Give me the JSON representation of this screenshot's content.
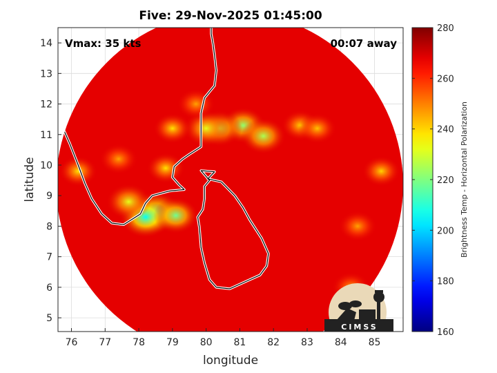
{
  "chart_data": {
    "type": "heatmap",
    "title": "Five: 29-Nov-2025 01:45:00",
    "xlabel": "longitude",
    "ylabel": "latitude",
    "xlim": [
      75.6,
      85.85
    ],
    "ylim": [
      4.55,
      14.5
    ],
    "x_ticks": [
      76,
      77,
      78,
      79,
      80,
      81,
      82,
      83,
      84,
      85
    ],
    "y_ticks": [
      5,
      6,
      7,
      8,
      9,
      10,
      11,
      12,
      13,
      14
    ],
    "grid": true,
    "annotations": {
      "left": "Vmax: 35 kts",
      "right": "00:07 away"
    },
    "colorbar": {
      "label": "Brightness Temp - Horizontal Polarization",
      "range": [
        160,
        280
      ],
      "ticks": [
        160,
        180,
        200,
        220,
        240,
        260,
        280
      ],
      "colormap": "jet"
    },
    "swath_center": [
      80.7,
      9.35
    ],
    "swath_radius_deg": 5.15,
    "background_value": 268,
    "features": [
      {
        "lon": 78.5,
        "lat": 8.45,
        "value": 208
      },
      {
        "lon": 78.2,
        "lat": 8.3,
        "value": 205
      },
      {
        "lon": 79.1,
        "lat": 8.35,
        "value": 218
      },
      {
        "lon": 81.1,
        "lat": 11.3,
        "value": 222
      },
      {
        "lon": 80.4,
        "lat": 11.2,
        "value": 228
      },
      {
        "lon": 81.7,
        "lat": 10.95,
        "value": 225
      },
      {
        "lon": 80.0,
        "lat": 11.2,
        "value": 232
      },
      {
        "lon": 79.0,
        "lat": 11.2,
        "value": 238
      },
      {
        "lon": 77.7,
        "lat": 8.8,
        "value": 232
      },
      {
        "lon": 76.2,
        "lat": 9.8,
        "value": 238
      },
      {
        "lon": 78.8,
        "lat": 9.9,
        "value": 238
      },
      {
        "lon": 85.2,
        "lat": 9.8,
        "value": 240
      },
      {
        "lon": 84.5,
        "lat": 8.0,
        "value": 246
      },
      {
        "lon": 79.7,
        "lat": 12.0,
        "value": 246
      },
      {
        "lon": 77.4,
        "lat": 10.2,
        "value": 246
      },
      {
        "lon": 82.8,
        "lat": 11.3,
        "value": 240
      },
      {
        "lon": 83.3,
        "lat": 11.2,
        "value": 242
      },
      {
        "lon": 84.3,
        "lat": 6.0,
        "value": 246
      }
    ]
  },
  "logo": {
    "text": "CIMSS"
  },
  "colors": {
    "coast": "#ffffff",
    "grid": "#dcdcdc",
    "axis": "#262626"
  }
}
